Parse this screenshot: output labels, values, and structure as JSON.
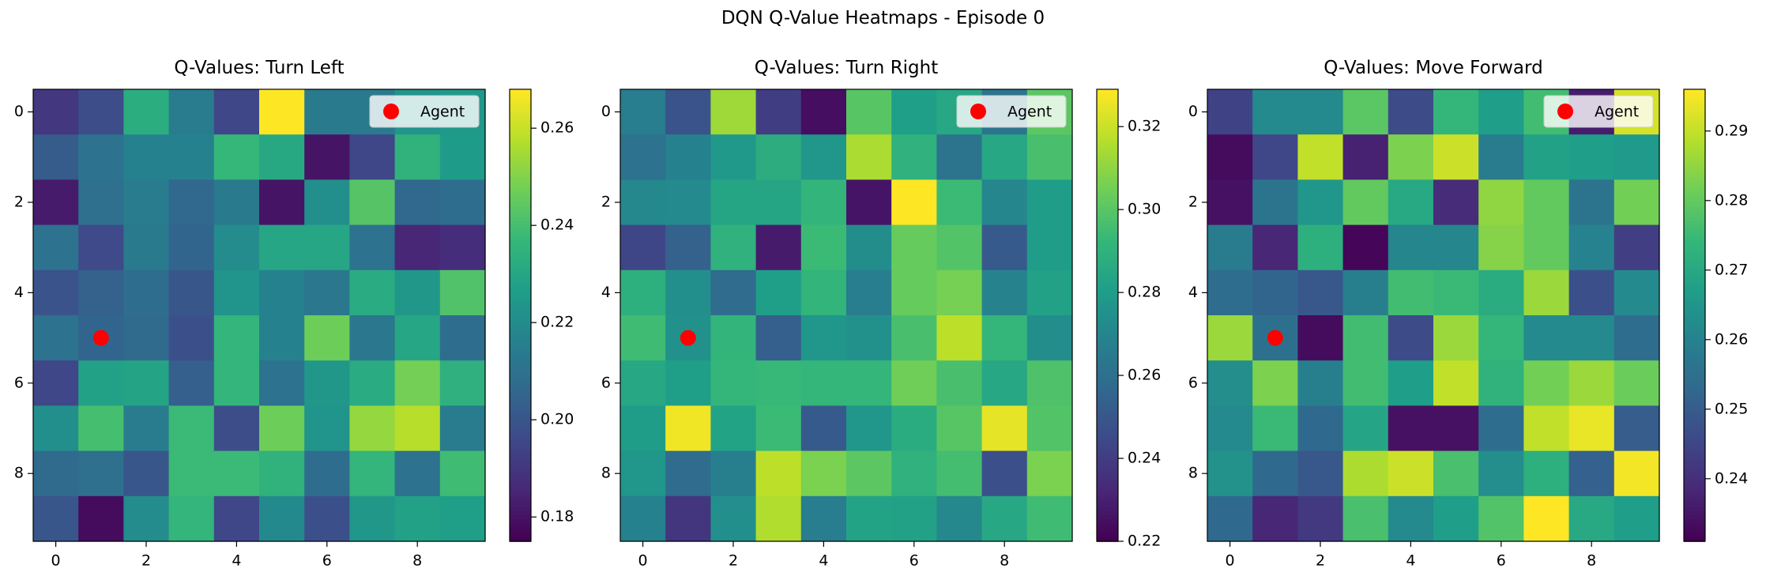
{
  "figure": {
    "suptitle": "DQN Q-Value Heatmaps - Episode 0"
  },
  "colormap": [
    "#440154",
    "#482878",
    "#3e4989",
    "#31688e",
    "#26828e",
    "#1f9e89",
    "#35b779",
    "#6ece58",
    "#b5de2b",
    "#fde725"
  ],
  "chart_data": [
    {
      "type": "heatmap",
      "title": "Q-Values: Turn Left",
      "xticks": [
        0,
        2,
        4,
        6,
        8
      ],
      "yticks": [
        0,
        2,
        4,
        6,
        8
      ],
      "vmin": 0.175,
      "vmax": 0.268,
      "colorbar_ticks": [
        0.18,
        0.2,
        0.22,
        0.24,
        0.26
      ],
      "colorbar_ticklabels": [
        "0.18",
        "0.20",
        "0.22",
        "0.24",
        "0.26"
      ],
      "legend": {
        "label": "Agent",
        "placement": "upper-right",
        "marker_color": "#ff0000"
      },
      "agent": {
        "row": 5,
        "col": 1
      },
      "grid": [
        [
          0.19,
          0.197,
          0.233,
          0.214,
          0.195,
          0.268,
          0.213,
          0.213,
          0.223,
          0.225
        ],
        [
          0.202,
          0.21,
          0.216,
          0.216,
          0.237,
          0.231,
          0.18,
          0.195,
          0.235,
          0.226
        ],
        [
          0.182,
          0.209,
          0.214,
          0.206,
          0.213,
          0.18,
          0.221,
          0.243,
          0.206,
          0.208
        ],
        [
          0.21,
          0.196,
          0.213,
          0.205,
          0.22,
          0.23,
          0.23,
          0.21,
          0.185,
          0.187
        ],
        [
          0.199,
          0.204,
          0.208,
          0.2,
          0.223,
          0.216,
          0.212,
          0.232,
          0.224,
          0.242
        ],
        [
          0.21,
          0.205,
          0.207,
          0.198,
          0.236,
          0.216,
          0.247,
          0.212,
          0.23,
          0.208
        ],
        [
          0.195,
          0.228,
          0.229,
          0.203,
          0.236,
          0.21,
          0.224,
          0.232,
          0.248,
          0.234
        ],
        [
          0.221,
          0.24,
          0.214,
          0.238,
          0.197,
          0.247,
          0.223,
          0.253,
          0.258,
          0.214
        ],
        [
          0.207,
          0.209,
          0.2,
          0.238,
          0.238,
          0.235,
          0.208,
          0.236,
          0.21,
          0.239
        ],
        [
          0.2,
          0.178,
          0.22,
          0.236,
          0.195,
          0.219,
          0.198,
          0.224,
          0.228,
          0.227
        ]
      ]
    },
    {
      "type": "heatmap",
      "title": "Q-Values: Turn Right",
      "xticks": [
        0,
        2,
        4,
        6,
        8
      ],
      "yticks": [
        0,
        2,
        4,
        6,
        8
      ],
      "vmin": 0.22,
      "vmax": 0.329,
      "colorbar_ticks": [
        0.22,
        0.24,
        0.26,
        0.28,
        0.3,
        0.32
      ],
      "colorbar_ticklabels": [
        "0.22",
        "0.24",
        "0.26",
        "0.28",
        "0.30",
        "0.32"
      ],
      "legend": {
        "label": "Agent",
        "placement": "upper-right",
        "marker_color": "#ff0000"
      },
      "agent": {
        "row": 5,
        "col": 1
      },
      "grid": [
        [
          0.266,
          0.248,
          0.313,
          0.24,
          0.224,
          0.3,
          0.281,
          0.285,
          0.262,
          0.301
        ],
        [
          0.261,
          0.268,
          0.278,
          0.288,
          0.277,
          0.315,
          0.29,
          0.262,
          0.285,
          0.297
        ],
        [
          0.271,
          0.272,
          0.284,
          0.284,
          0.291,
          0.226,
          0.329,
          0.294,
          0.27,
          0.28
        ],
        [
          0.243,
          0.254,
          0.29,
          0.228,
          0.294,
          0.273,
          0.303,
          0.299,
          0.251,
          0.28
        ],
        [
          0.289,
          0.274,
          0.258,
          0.281,
          0.291,
          0.266,
          0.303,
          0.306,
          0.269,
          0.282
        ],
        [
          0.295,
          0.275,
          0.291,
          0.253,
          0.277,
          0.275,
          0.297,
          0.318,
          0.292,
          0.273
        ],
        [
          0.285,
          0.281,
          0.292,
          0.293,
          0.292,
          0.292,
          0.305,
          0.297,
          0.285,
          0.298
        ],
        [
          0.28,
          0.327,
          0.283,
          0.294,
          0.251,
          0.277,
          0.287,
          0.3,
          0.325,
          0.299
        ],
        [
          0.277,
          0.258,
          0.267,
          0.318,
          0.307,
          0.301,
          0.29,
          0.296,
          0.247,
          0.307
        ],
        [
          0.268,
          0.237,
          0.274,
          0.316,
          0.266,
          0.283,
          0.282,
          0.271,
          0.285,
          0.295
        ]
      ]
    },
    {
      "type": "heatmap",
      "title": "Q-Values: Move Forward",
      "xticks": [
        0,
        2,
        4,
        6,
        8
      ],
      "yticks": [
        0,
        2,
        4,
        6,
        8
      ],
      "vmin": 0.231,
      "vmax": 0.296,
      "colorbar_ticks": [
        0.24,
        0.25,
        0.26,
        0.27,
        0.28,
        0.29
      ],
      "colorbar_ticklabels": [
        "0.24",
        "0.25",
        "0.26",
        "0.27",
        "0.28",
        "0.29"
      ],
      "legend": {
        "label": "Agent",
        "placement": "upper-right",
        "marker_color": "#ff0000"
      },
      "agent": {
        "row": 5,
        "col": 1
      },
      "grid": [
        [
          0.244,
          0.262,
          0.262,
          0.279,
          0.246,
          0.274,
          0.267,
          0.276,
          0.236,
          0.292
        ],
        [
          0.233,
          0.245,
          0.29,
          0.237,
          0.283,
          0.291,
          0.258,
          0.268,
          0.267,
          0.266
        ],
        [
          0.234,
          0.256,
          0.265,
          0.28,
          0.27,
          0.239,
          0.285,
          0.28,
          0.256,
          0.282
        ],
        [
          0.258,
          0.238,
          0.272,
          0.232,
          0.261,
          0.261,
          0.284,
          0.28,
          0.26,
          0.243
        ],
        [
          0.254,
          0.252,
          0.249,
          0.259,
          0.276,
          0.275,
          0.271,
          0.286,
          0.247,
          0.262
        ],
        [
          0.286,
          0.255,
          0.233,
          0.276,
          0.246,
          0.286,
          0.274,
          0.262,
          0.262,
          0.254
        ],
        [
          0.263,
          0.283,
          0.259,
          0.276,
          0.267,
          0.29,
          0.273,
          0.282,
          0.286,
          0.281
        ],
        [
          0.262,
          0.275,
          0.253,
          0.269,
          0.234,
          0.234,
          0.254,
          0.29,
          0.294,
          0.25
        ],
        [
          0.264,
          0.253,
          0.249,
          0.288,
          0.291,
          0.277,
          0.263,
          0.272,
          0.251,
          0.295
        ],
        [
          0.253,
          0.238,
          0.242,
          0.277,
          0.262,
          0.267,
          0.278,
          0.296,
          0.27,
          0.267
        ]
      ]
    }
  ]
}
